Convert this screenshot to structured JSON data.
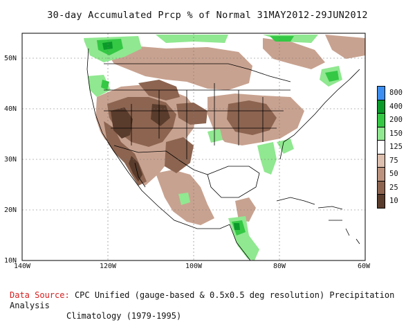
{
  "title": "30-day Accumulated Prcp % of Normal 31MAY2012-29JUN2012",
  "lat_labels": [
    "50N",
    "40N",
    "30N",
    "20N",
    "10N"
  ],
  "lon_labels": [
    "140W",
    "120W",
    "100W",
    "80W",
    "60W"
  ],
  "legend": {
    "items": [
      {
        "label": "800",
        "color": "#3d8ef0"
      },
      {
        "label": "400",
        "color": "#0a9a2a"
      },
      {
        "label": "200",
        "color": "#34c845"
      },
      {
        "label": "150",
        "color": "#90e890"
      },
      {
        "label": "125",
        "color": "#ffffff"
      },
      {
        "label": "75",
        "color": "#dcbfae"
      },
      {
        "label": "50",
        "color": "#bb927e"
      },
      {
        "label": "25",
        "color": "#8c6450"
      },
      {
        "label": "10",
        "color": "#5a3c2c"
      }
    ]
  },
  "source": {
    "label": "Data Source:",
    "line1": "CPC Unified (gauge-based & 0.5x0.5 deg resolution) Precipitation Analysis",
    "line2": "Climatology (1979-1995)"
  }
}
